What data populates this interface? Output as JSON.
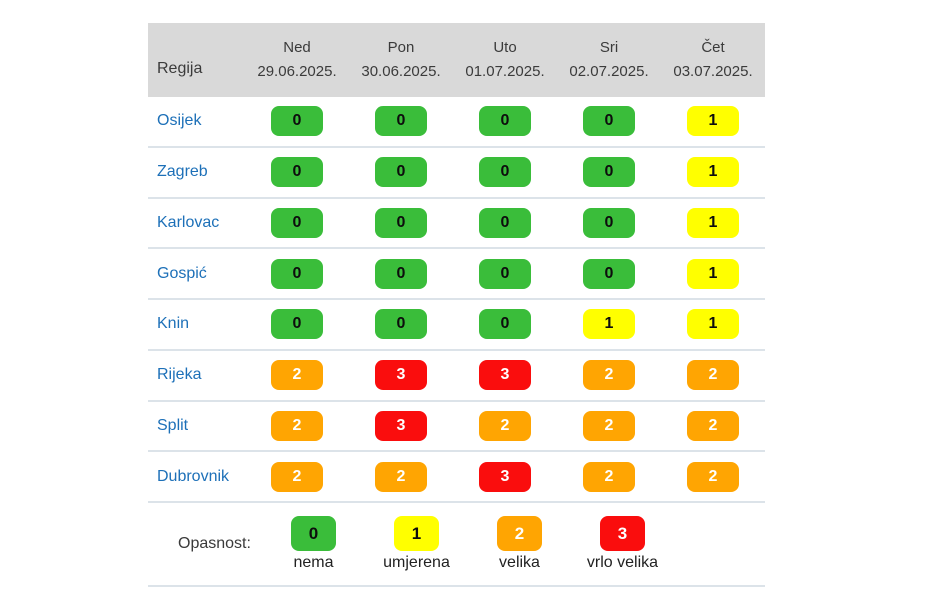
{
  "table": {
    "region_header_label": "Regija",
    "columns": [
      {
        "day": "Ned",
        "date": "29.06.2025."
      },
      {
        "day": "Pon",
        "date": "30.06.2025."
      },
      {
        "day": "Uto",
        "date": "01.07.2025."
      },
      {
        "day": "Sri",
        "date": "02.07.2025."
      },
      {
        "day": "Čet",
        "date": "03.07.2025."
      }
    ],
    "rows": [
      {
        "region": "Osijek",
        "values": [
          0,
          0,
          0,
          0,
          1
        ]
      },
      {
        "region": "Zagreb",
        "values": [
          0,
          0,
          0,
          0,
          1
        ]
      },
      {
        "region": "Karlovac",
        "values": [
          0,
          0,
          0,
          0,
          1
        ]
      },
      {
        "region": "Gospić",
        "values": [
          0,
          0,
          0,
          0,
          1
        ]
      },
      {
        "region": "Knin",
        "values": [
          0,
          0,
          0,
          1,
          1
        ]
      },
      {
        "region": "Rijeka",
        "values": [
          2,
          3,
          3,
          2,
          2
        ]
      },
      {
        "region": "Split",
        "values": [
          2,
          3,
          2,
          2,
          2
        ]
      },
      {
        "region": "Dubrovnik",
        "values": [
          2,
          2,
          3,
          2,
          2
        ]
      }
    ]
  },
  "legend": {
    "label": "Opasnost:",
    "items": [
      {
        "value": "0",
        "label": "nema"
      },
      {
        "value": "1",
        "label": "umjerena"
      },
      {
        "value": "2",
        "label": "velika"
      },
      {
        "value": "3",
        "label": "vrlo velika"
      }
    ]
  },
  "colors": {
    "level_0_bg": "#3abd3a",
    "level_0_text": "#0d0d0d",
    "level_1_bg": "#ffff00",
    "level_1_text": "#0d0d0d",
    "level_2_bg": "#ffa502",
    "level_2_text": "#ffffff",
    "level_3_bg": "#fa0d0d",
    "level_3_text": "#ffffff",
    "region_link": "#1d70b8",
    "header_bg": "#d9d9d9",
    "header_text": "#3b3b3b",
    "divider": "#dce3e9",
    "legend_text": "#3a3a3a"
  }
}
